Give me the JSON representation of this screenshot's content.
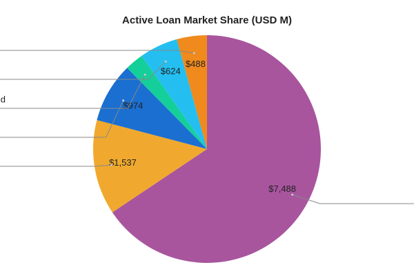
{
  "chart_data": {
    "type": "pie",
    "title": "Active Loan Market Share (USD M)",
    "categories": [
      null,
      null,
      null,
      "d",
      null,
      null
    ],
    "values": [
      7488,
      1537,
      974,
      300,
      624,
      488
    ],
    "value_labels": [
      "$7,488",
      "$1,537",
      "$974",
      null,
      "$624",
      "$488"
    ],
    "colors": [
      "#a8559e",
      "#f0a92e",
      "#1a6fd1",
      "#15cf9a",
      "#24bff0",
      "#f08a1c"
    ]
  }
}
